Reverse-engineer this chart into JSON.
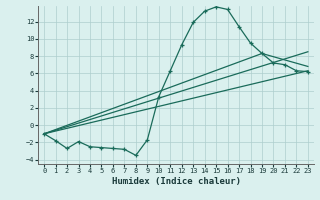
{
  "line1_x": [
    0,
    1,
    2,
    3,
    4,
    5,
    6,
    7,
    8,
    9,
    10,
    11,
    12,
    13,
    14,
    15,
    16,
    17,
    18,
    19,
    20,
    21,
    22,
    23
  ],
  "line1_y": [
    -1.0,
    -1.8,
    -2.7,
    -1.9,
    -2.5,
    -2.6,
    -2.7,
    -2.8,
    -3.5,
    -1.7,
    3.3,
    6.3,
    9.3,
    11.9,
    13.2,
    13.7,
    13.4,
    11.4,
    9.5,
    8.3,
    7.2,
    7.0,
    6.3,
    6.2
  ],
  "line2_x": [
    0,
    23
  ],
  "line2_y": [
    -1.0,
    8.5
  ],
  "line3_x": [
    0,
    19,
    23
  ],
  "line3_y": [
    -1.0,
    8.3,
    6.8
  ],
  "line4_x": [
    0,
    23
  ],
  "line4_y": [
    -1.0,
    6.3
  ],
  "color": "#1a6b5a",
  "bg_color": "#daf0ee",
  "grid_color": "#aecece",
  "xlabel": "Humidex (Indice chaleur)",
  "xlim": [
    -0.5,
    23.5
  ],
  "ylim": [
    -4.5,
    13.8
  ],
  "xticks": [
    0,
    1,
    2,
    3,
    4,
    5,
    6,
    7,
    8,
    9,
    10,
    11,
    12,
    13,
    14,
    15,
    16,
    17,
    18,
    19,
    20,
    21,
    22,
    23
  ],
  "yticks": [
    -4,
    -2,
    0,
    2,
    4,
    6,
    8,
    10,
    12
  ],
  "marker": "+"
}
